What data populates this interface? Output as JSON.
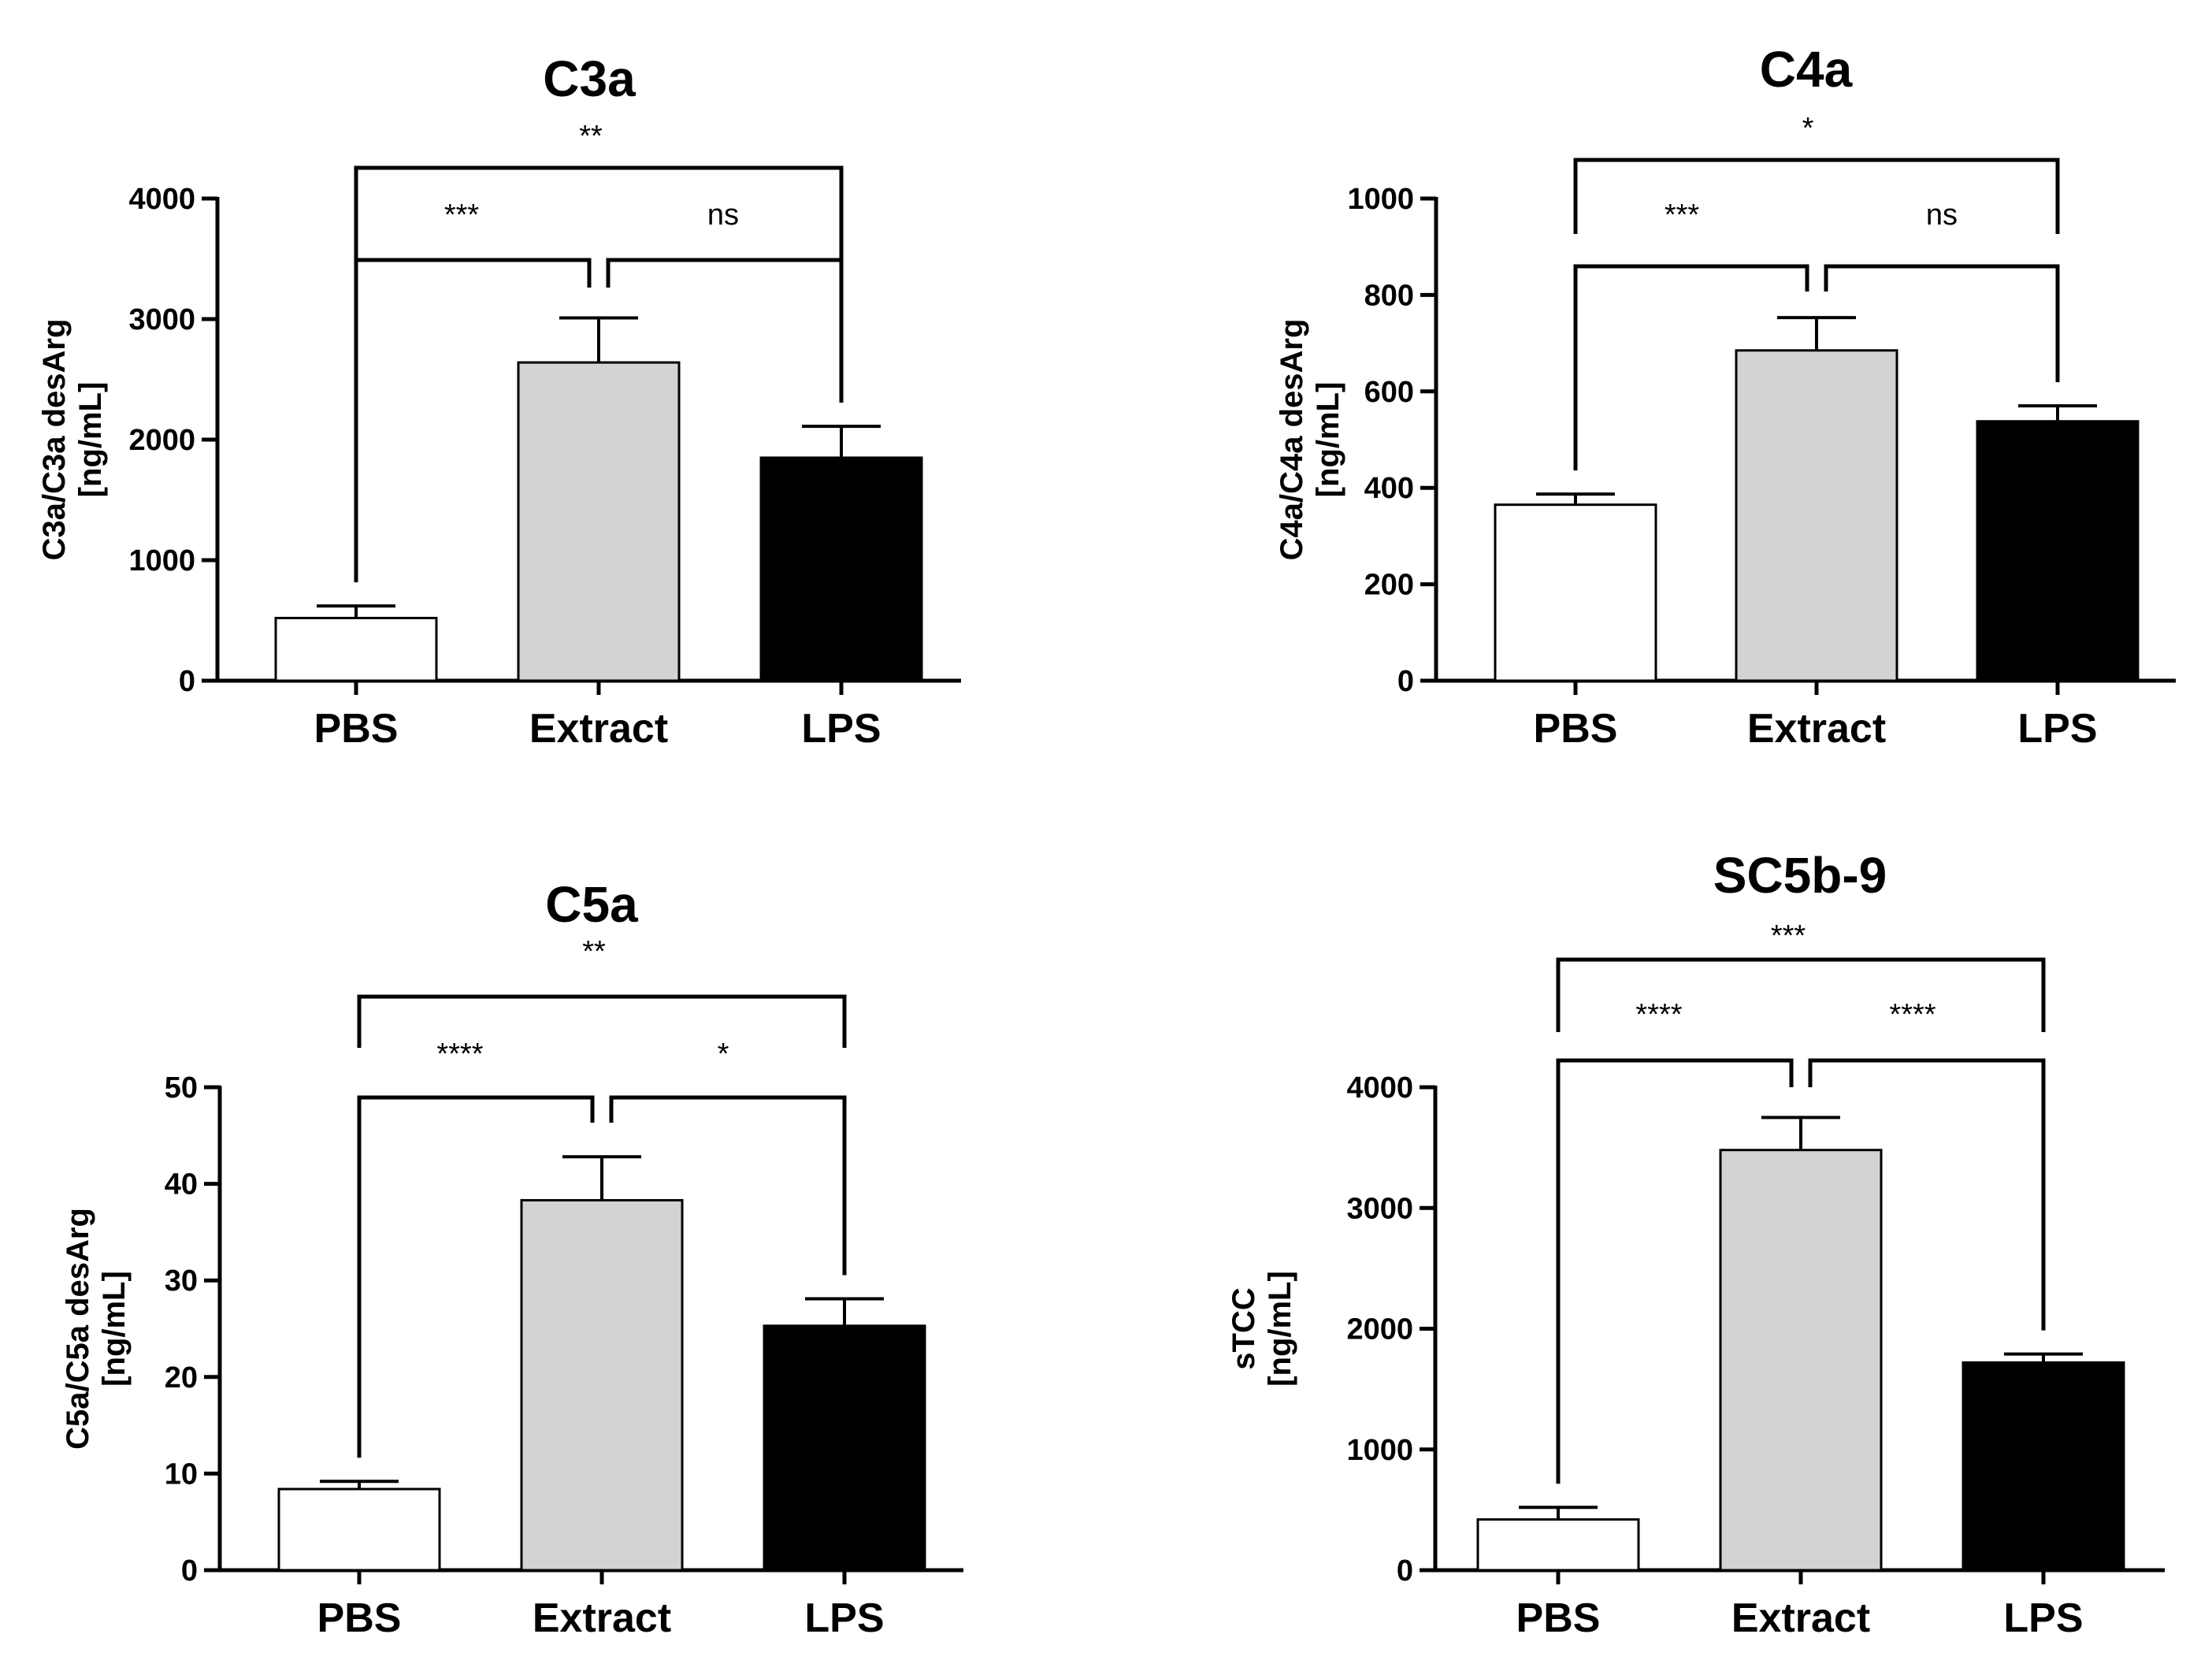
{
  "chart_data": [
    {
      "type": "bar",
      "title": "C3a",
      "ylabel": [
        "C3a/C3a desArg",
        "[ng/mL]"
      ],
      "categories": [
        "PBS",
        "Extract",
        "LPS"
      ],
      "values": [
        520,
        2640,
        1850
      ],
      "errors": [
        100,
        370,
        260
      ],
      "bar_colors": [
        "#ffffff",
        "#d3d3d3",
        "#000000"
      ],
      "ylim": [
        0,
        4000
      ],
      "yticks": [
        0,
        1000,
        2000,
        3000,
        4000
      ],
      "significance": [
        {
          "from": "PBS",
          "to": "Extract",
          "label": "***"
        },
        {
          "from": "Extract",
          "to": "LPS",
          "label": "ns"
        },
        {
          "from": "PBS",
          "to": "LPS",
          "label": "**"
        }
      ]
    },
    {
      "type": "bar",
      "title": "C4a",
      "ylabel": [
        "C4a/C4a desArg",
        "[ng/mL]"
      ],
      "categories": [
        "PBS",
        "Extract",
        "LPS"
      ],
      "values": [
        365,
        685,
        538
      ],
      "errors": [
        22,
        68,
        32
      ],
      "bar_colors": [
        "#ffffff",
        "#d3d3d3",
        "#000000"
      ],
      "ylim": [
        0,
        1000
      ],
      "yticks": [
        0,
        200,
        400,
        600,
        800,
        1000
      ],
      "significance": [
        {
          "from": "PBS",
          "to": "Extract",
          "label": "***"
        },
        {
          "from": "Extract",
          "to": "LPS",
          "label": "ns"
        },
        {
          "from": "PBS",
          "to": "LPS",
          "label": "*"
        }
      ]
    },
    {
      "type": "bar",
      "title": "C5a",
      "ylabel": [
        "C5a/C5a desArg",
        "[ng/mL]"
      ],
      "categories": [
        "PBS",
        "Extract",
        "LPS"
      ],
      "values": [
        8.4,
        38.3,
        25.3
      ],
      "errors": [
        0.8,
        4.5,
        2.8
      ],
      "bar_colors": [
        "#ffffff",
        "#d3d3d3",
        "#000000"
      ],
      "ylim": [
        0,
        50
      ],
      "yticks": [
        0,
        10,
        20,
        30,
        40,
        50
      ],
      "significance": [
        {
          "from": "PBS",
          "to": "Extract",
          "label": "****"
        },
        {
          "from": "Extract",
          "to": "LPS",
          "label": "*"
        },
        {
          "from": "PBS",
          "to": "LPS",
          "label": "**"
        }
      ]
    },
    {
      "type": "bar",
      "title": "SC5b-9",
      "ylabel": [
        "sTCC",
        "[ng/mL]"
      ],
      "categories": [
        "PBS",
        "Extract",
        "LPS"
      ],
      "values": [
        420,
        3480,
        1720
      ],
      "errors": [
        100,
        270,
        70
      ],
      "bar_colors": [
        "#ffffff",
        "#d3d3d3",
        "#000000"
      ],
      "ylim": [
        0,
        4000
      ],
      "yticks": [
        0,
        1000,
        2000,
        3000,
        4000
      ],
      "significance": [
        {
          "from": "PBS",
          "to": "Extract",
          "label": "****"
        },
        {
          "from": "Extract",
          "to": "LPS",
          "label": "****"
        },
        {
          "from": "PBS",
          "to": "LPS",
          "label": "***"
        }
      ]
    }
  ]
}
